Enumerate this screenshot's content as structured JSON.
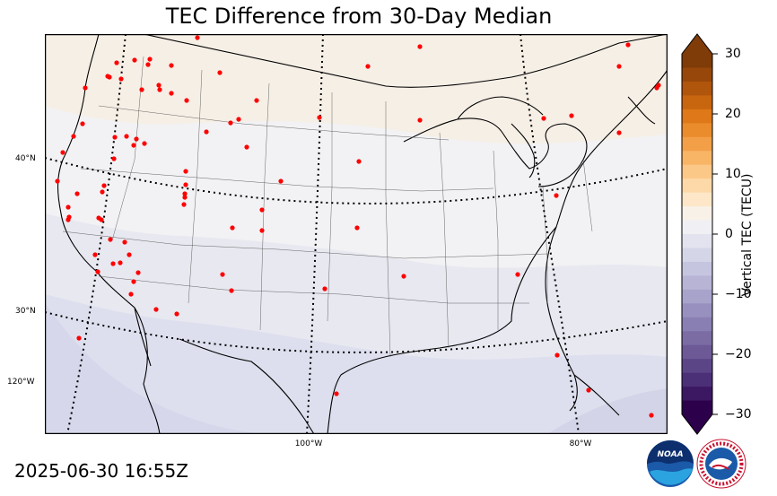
{
  "title": "TEC Difference from 30-Day Median",
  "timestamp": "2025-06-30 16:55Z",
  "colorbar": {
    "label": "Vertical TEC (TECU)",
    "ticks": [
      "30",
      "20",
      "10",
      "0",
      "−10",
      "−20",
      "−30"
    ],
    "range": [
      -30,
      30
    ]
  },
  "graticule": {
    "lat_labels": [
      "40°N",
      "30°N"
    ],
    "lon_labels": [
      "120°W",
      "100°W",
      "80°W"
    ]
  },
  "logos": {
    "noaa": "NOAA",
    "nws": "NATIONAL WEATHER SERVICE"
  },
  "colors": {
    "positive_max": "#7f3b08",
    "neutral": "#f7f7f7",
    "negative_max": "#2d004b",
    "stations": "#ff0000"
  },
  "map_data": {
    "projection": "Lambert conformal",
    "field": "TEC difference from 30-day median",
    "station_count": 84
  }
}
